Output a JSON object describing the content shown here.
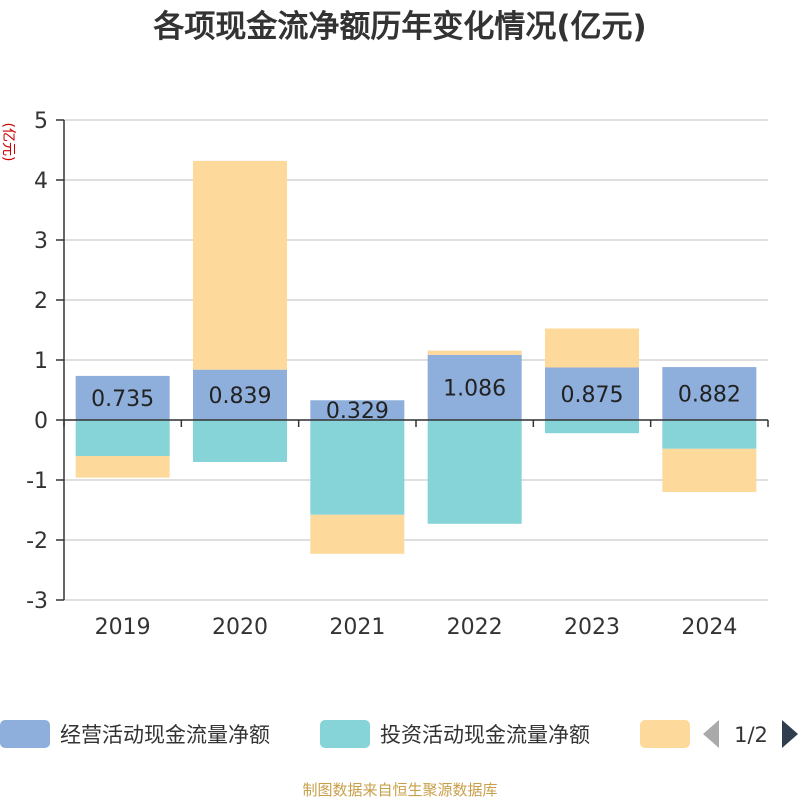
{
  "chart_data": {
    "type": "bar",
    "stacked": true,
    "title": "各项现金流净额历年变化情况(亿元)",
    "ylabel": "(亿元)",
    "ylim": [
      -3,
      5
    ],
    "yticks": [
      5,
      4,
      3,
      2,
      1,
      0,
      -1,
      -2,
      -3
    ],
    "categories": [
      "2019",
      "2020",
      "2021",
      "2022",
      "2023",
      "2024"
    ],
    "series": [
      {
        "name": "经营活动现金流量净额",
        "color": "#8eaedb",
        "values": [
          0.735,
          0.839,
          0.329,
          1.086,
          0.875,
          0.882
        ]
      },
      {
        "name": "投资活动现金流量净额",
        "color": "#86d4d8",
        "values": [
          -0.6,
          -0.7,
          -1.58,
          -1.73,
          -0.22,
          -0.48
        ]
      },
      {
        "name": "",
        "color": "#fdd99b",
        "values": [
          -0.36,
          3.48,
          -0.65,
          0.07,
          0.65,
          -0.72
        ]
      }
    ],
    "data_labels": [
      "0.735",
      "0.839",
      "0.329",
      "1.086",
      "0.875",
      "0.882"
    ],
    "grid": true,
    "legend": {
      "position": "bottom",
      "page": "1/2"
    }
  },
  "source": "制图数据来自恒生聚源数据库",
  "icons": {
    "prev": "triangle-left-icon",
    "next": "triangle-right-icon"
  }
}
